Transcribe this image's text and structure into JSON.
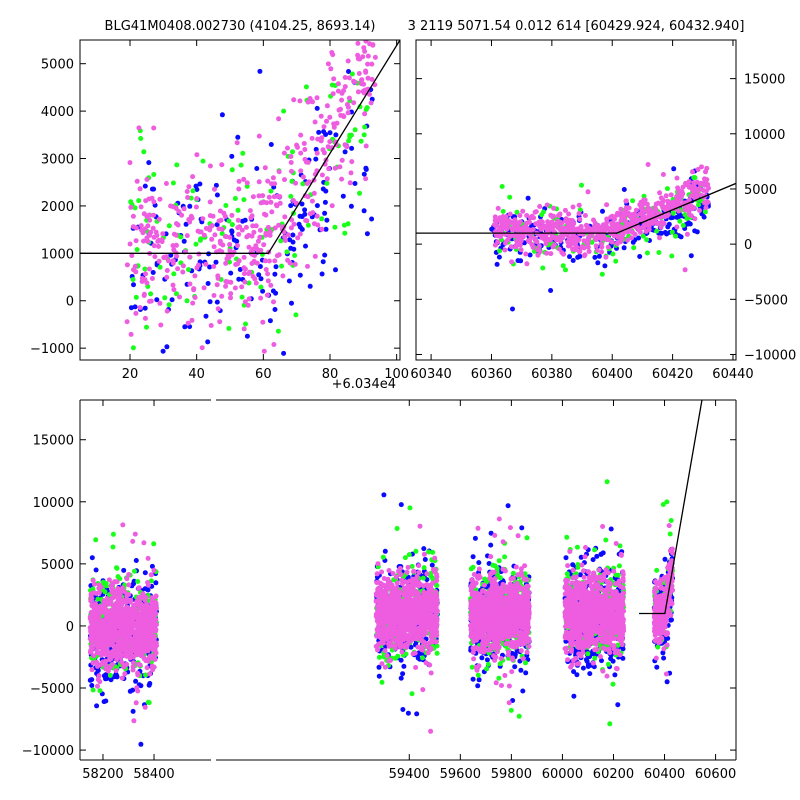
{
  "title_left": "BLG41M0408.002730 (4104.25, 8693.14)",
  "title_right": "3 2119 5071.54 0.012 614 [60429.924, 60432.940]",
  "colors": {
    "blue": "#0a0aff",
    "green": "#19ff19",
    "magenta": "#ee5ce0",
    "model": "#000000"
  },
  "chart_data": [
    {
      "id": "zoom-left",
      "type": "scatter",
      "xlim": [
        5,
        101
      ],
      "ylim": [
        -1250,
        5500
      ],
      "x_offset_label": "+6.034e4",
      "x_ticks": [
        20,
        40,
        60,
        80,
        100
      ],
      "y_ticks": [
        -1000,
        0,
        1000,
        2000,
        3000,
        4000,
        5000
      ],
      "x_tick_labels": [
        "20",
        "40",
        "60",
        "80",
        "100"
      ],
      "y_tick_labels": [
        "−1000",
        "0",
        "1000",
        "2000",
        "3000",
        "4000",
        "5000"
      ],
      "series_shape": [
        {
          "color": "blue",
          "n": 180,
          "x": [
            20,
            93
          ],
          "baseline": 900,
          "spread": 1000,
          "rise_start": 62,
          "slope": 95
        },
        {
          "color": "green",
          "n": 140,
          "x": [
            20,
            93
          ],
          "baseline": 1100,
          "spread": 1000,
          "rise_start": 62,
          "slope": 110
        },
        {
          "color": "magenta",
          "n": 480,
          "x": [
            19,
            94
          ],
          "baseline": 1100,
          "spread": 850,
          "rise_start": 60,
          "slope": 125
        }
      ],
      "model": [
        [
          5,
          1000
        ],
        [
          61.5,
          1000
        ],
        [
          101,
          5500
        ]
      ]
    },
    {
      "id": "zoom-right",
      "type": "scatter",
      "xlim": [
        60335,
        60441
      ],
      "ylim": [
        -10500,
        18500
      ],
      "x_ticks": [
        60340,
        60360,
        60380,
        60400,
        60420,
        60440
      ],
      "y_ticks": [
        -10000,
        -5000,
        0,
        5000,
        10000,
        15000
      ],
      "x_tick_labels": [
        "60340",
        "60360",
        "60380",
        "60400",
        "60420",
        "60440"
      ],
      "y_tick_labels": [
        "−10000",
        "−5000",
        "0",
        "5000",
        "10000",
        "15000"
      ],
      "series_shape": [
        {
          "color": "blue",
          "n": 260,
          "x": [
            60360,
            60432
          ],
          "baseline": 700,
          "spread": 1100,
          "rise_start": 60400,
          "slope": 95
        },
        {
          "color": "green",
          "n": 160,
          "x": [
            60362,
            60431
          ],
          "baseline": 1000,
          "spread": 1300,
          "rise_start": 60400,
          "slope": 105
        },
        {
          "color": "magenta",
          "n": 650,
          "x": [
            60361,
            60432
          ],
          "baseline": 1100,
          "spread": 900,
          "rise_start": 60400,
          "slope": 120
        }
      ],
      "model": [
        [
          60335,
          1000
        ],
        [
          60401.5,
          1000
        ],
        [
          60441,
          5500
        ]
      ]
    },
    {
      "id": "full",
      "type": "scatter",
      "xlim": [
        58110,
        60680
      ],
      "ylim": [
        -10800,
        18200
      ],
      "x_ticks": [
        58200,
        58400,
        59400,
        59600,
        59800,
        60000,
        60200,
        60400,
        60600
      ],
      "y_ticks": [
        -10000,
        -5000,
        0,
        5000,
        10000,
        15000
      ],
      "x_tick_labels": [
        "58200",
        "58400",
        "59400",
        "59600",
        "59800",
        "60000",
        "60200",
        "60400",
        "60600"
      ],
      "y_tick_labels": [
        "−10000",
        "−5000",
        "0",
        "5000",
        "10000",
        "15000"
      ],
      "seasons": [
        {
          "x": [
            58150,
            58410
          ],
          "baseline": -200,
          "spread": 1600
        },
        {
          "x": [
            59270,
            59510
          ],
          "baseline": 1000,
          "spread": 1500
        },
        {
          "x": [
            59640,
            59870
          ],
          "baseline": 800,
          "spread": 1500
        },
        {
          "x": [
            60010,
            60240
          ],
          "baseline": 1000,
          "spread": 1600
        },
        {
          "x": [
            60360,
            60432
          ],
          "baseline": 900,
          "spread": 1200,
          "rise_start": 60400,
          "slope": 110
        }
      ],
      "model": [
        [
          60300,
          1000
        ],
        [
          60401.5,
          1000
        ],
        [
          60680,
          34000
        ]
      ]
    }
  ]
}
